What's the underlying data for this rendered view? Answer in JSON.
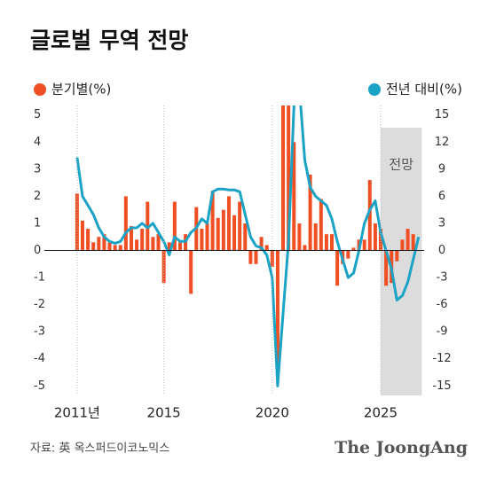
{
  "chart_data": {
    "type": "bar_line",
    "title": "글로벌 무역 전망",
    "source": "자료: 英 옥스퍼드이코노믹스",
    "brand": "The JoongAng",
    "forecast": {
      "label": "전망",
      "from": 2025,
      "to": 2026.9
    },
    "x": [
      2011,
      2011.25,
      2011.5,
      2011.75,
      2012,
      2012.25,
      2012.5,
      2012.75,
      2013,
      2013.25,
      2013.5,
      2013.75,
      2014,
      2014.25,
      2014.5,
      2014.75,
      2015,
      2015.25,
      2015.5,
      2015.75,
      2016,
      2016.25,
      2016.5,
      2016.75,
      2017,
      2017.25,
      2017.5,
      2017.75,
      2018,
      2018.25,
      2018.5,
      2018.75,
      2019,
      2019.25,
      2019.5,
      2019.75,
      2020,
      2020.25,
      2020.5,
      2020.75,
      2021,
      2021.25,
      2021.5,
      2021.75,
      2022,
      2022.25,
      2022.5,
      2022.75,
      2023,
      2023.25,
      2023.5,
      2023.75,
      2024,
      2024.25,
      2024.5,
      2024.75,
      2025,
      2025.25,
      2025.5,
      2025.75,
      2026,
      2026.25,
      2026.5,
      2026.75
    ],
    "xlim": [
      2009,
      2027.25
    ],
    "xticks": [
      {
        "value": 2011,
        "label": "2011년"
      },
      2015,
      2020,
      2025
    ],
    "ylim": [
      -5.35,
      5.35
    ],
    "yticks": [
      5,
      4,
      3,
      2,
      1,
      0,
      -1,
      -2,
      -3,
      -4,
      -5
    ],
    "y2lim": [
      -16.05,
      16.05
    ],
    "y2ticks": [
      15,
      12,
      9,
      6,
      3,
      0,
      -3,
      -6,
      -9,
      -12,
      -15
    ],
    "series": [
      {
        "name": "분기별(%)",
        "color": "#f04e23",
        "type": "bar",
        "values": [
          2.1,
          1.1,
          0.8,
          0.3,
          0.5,
          0.6,
          0.3,
          0.2,
          0.2,
          2.0,
          0.9,
          0.4,
          0.8,
          1.8,
          0.5,
          0.6,
          -1.2,
          0.3,
          1.8,
          0.3,
          0.6,
          -1.6,
          1.6,
          0.8,
          1.0,
          2.2,
          1.2,
          1.5,
          2.0,
          1.3,
          1.8,
          1.0,
          -0.5,
          -0.5,
          0.5,
          0.2,
          -0.6,
          -4.5,
          8.0,
          6.0,
          4.0,
          1.0,
          0.2,
          2.8,
          1.0,
          1.9,
          0.6,
          0.6,
          -1.3,
          -0.5,
          -0.3,
          0.1,
          0.4,
          0.4,
          2.6,
          1.0,
          0.8,
          -1.3,
          -1.2,
          -0.4,
          0.4,
          0.8,
          0.6,
          null
        ]
      },
      {
        "name": "전년 대비(%)",
        "color": "#1ba3c6",
        "type": "line",
        "axis": "y2",
        "values": [
          10.3,
          6.0,
          5.0,
          4.0,
          2.5,
          1.5,
          1.0,
          0.8,
          1.0,
          2.0,
          2.5,
          2.5,
          3.0,
          2.5,
          3.0,
          2.0,
          1.0,
          -0.5,
          1.5,
          1.0,
          1.0,
          2.0,
          2.5,
          3.5,
          3.0,
          6.5,
          6.8,
          6.8,
          6.7,
          6.7,
          6.5,
          4.0,
          1.5,
          0.5,
          0.3,
          -0.5,
          -3.0,
          -15.0,
          -7.0,
          1.0,
          16.0,
          18.0,
          10.0,
          7.0,
          6.0,
          5.5,
          5.0,
          3.5,
          1.0,
          -1.0,
          -3.0,
          -2.5,
          0.0,
          3.0,
          4.5,
          5.5,
          2.0,
          0.0,
          -2.0,
          -5.5,
          -5.0,
          -3.5,
          -1.0,
          1.5
        ]
      }
    ]
  }
}
